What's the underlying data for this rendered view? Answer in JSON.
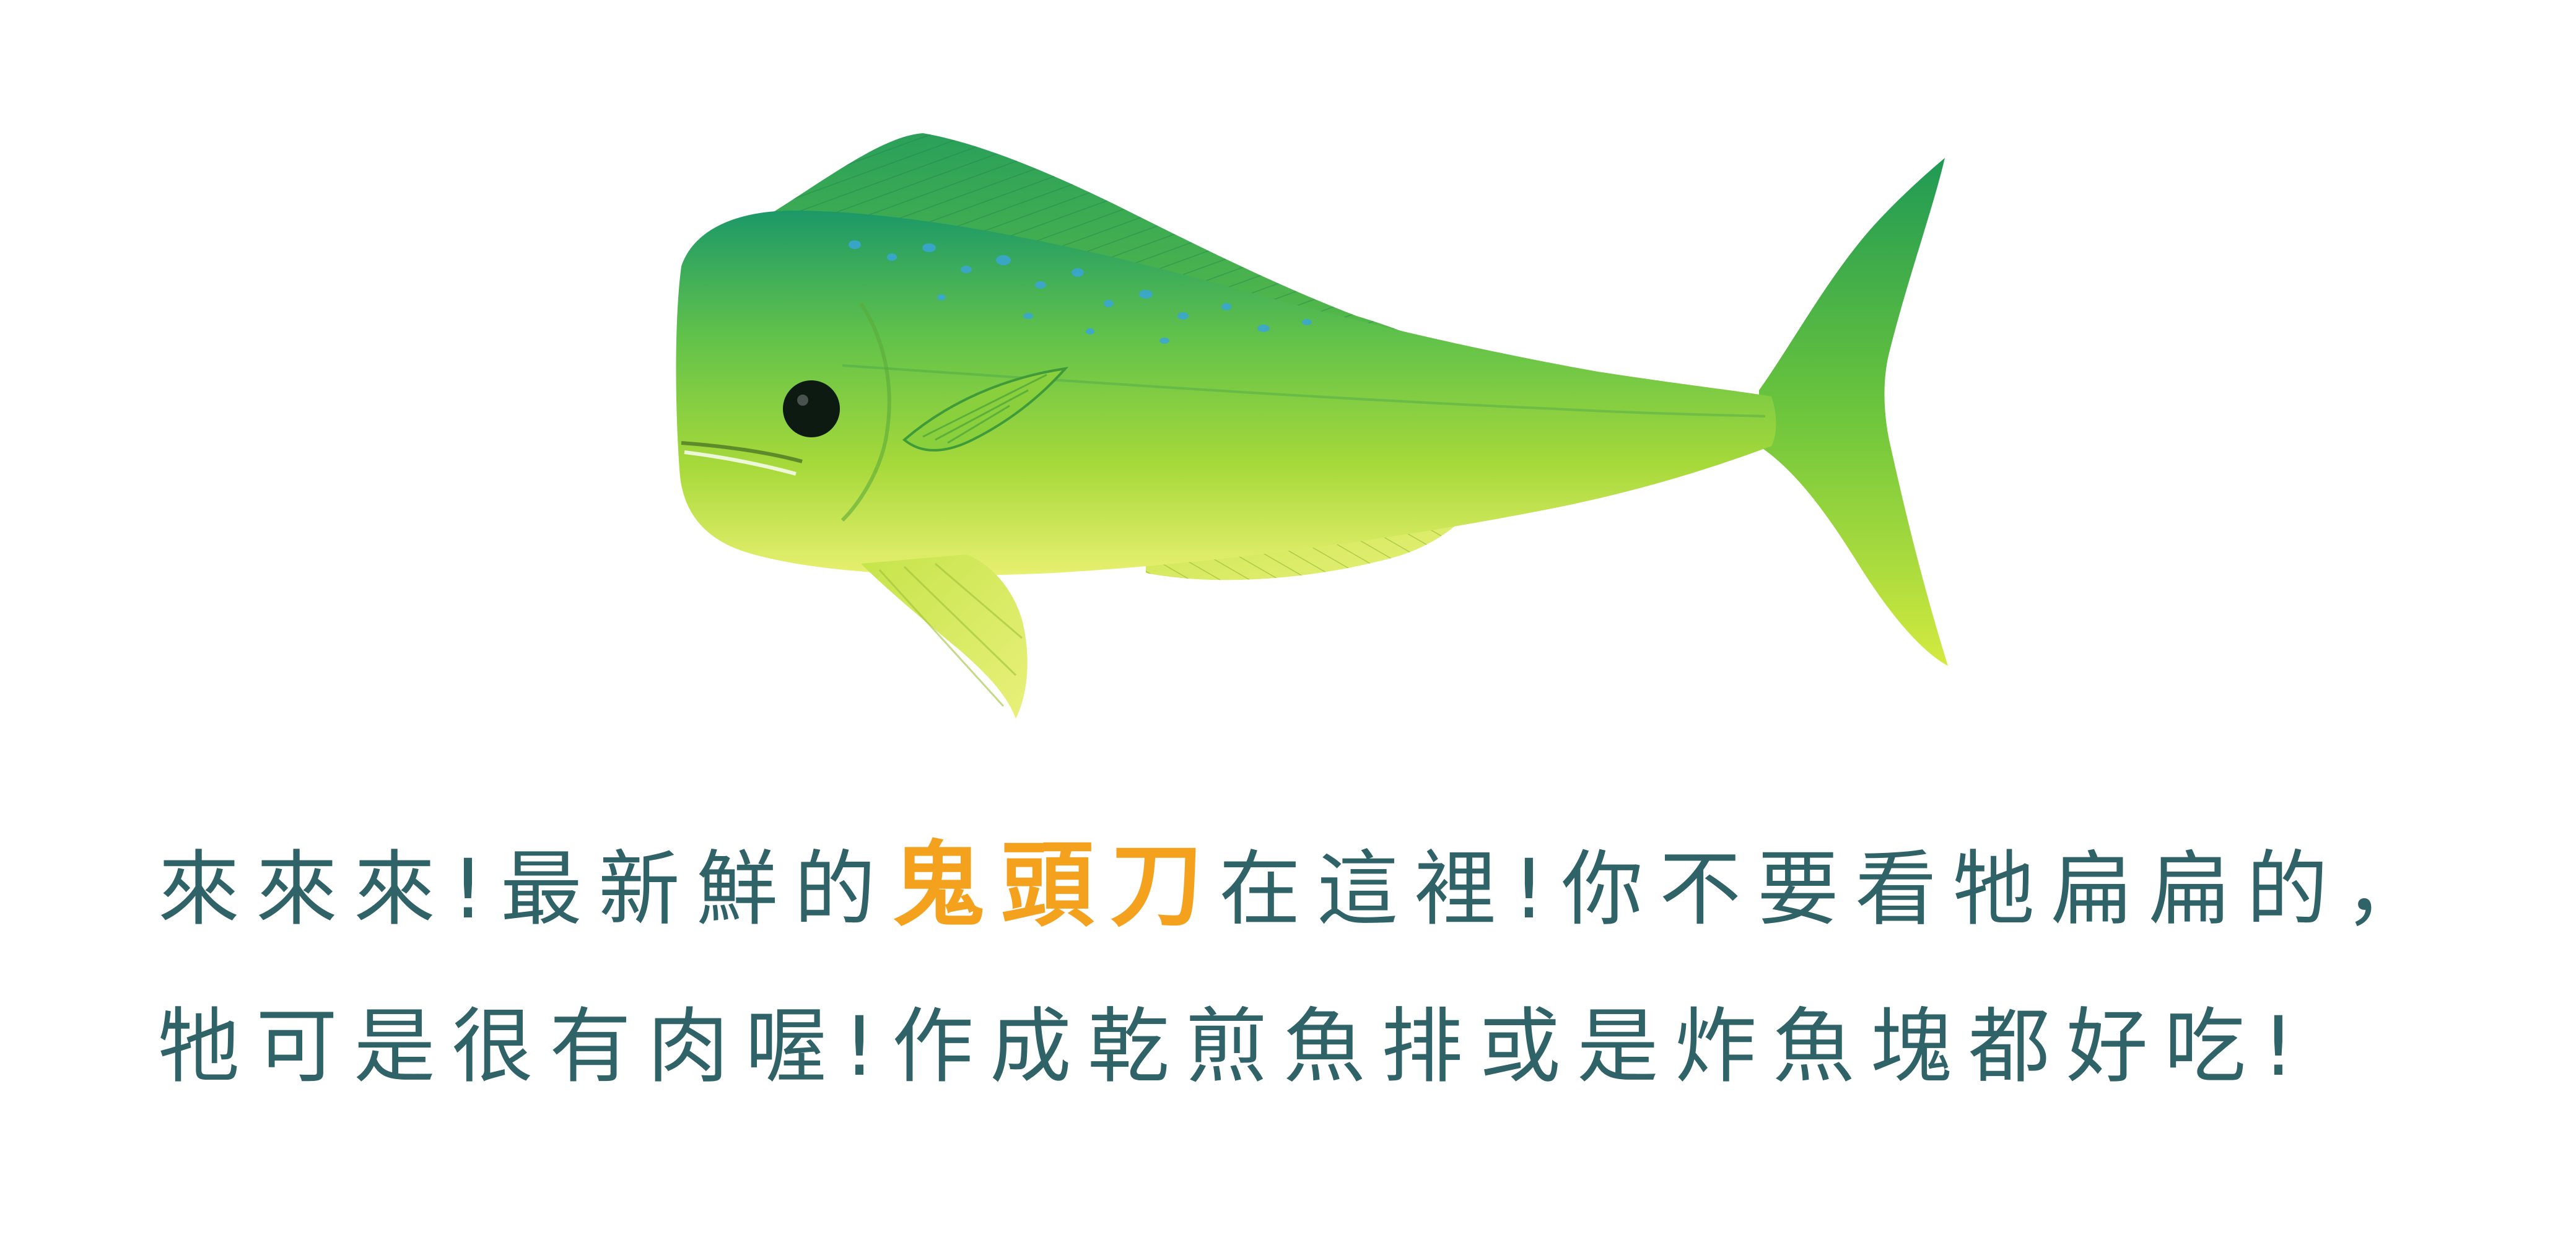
{
  "illustration": {
    "icon": "mahi-mahi-fish-icon",
    "colors": {
      "back": "#1f9a6a",
      "body": "#8fd13a",
      "belly": "#e6ef6a",
      "spots": "#3aa6d8",
      "eye": "#0d1a12"
    }
  },
  "caption": {
    "line1_before": "來來來!最新鮮的",
    "line1_highlight": "鬼頭刀",
    "line1_after": "在這裡!你不要看牠扁扁的，",
    "line2": "牠可是很有肉喔!作成乾煎魚排或是炸魚塊都好吃!",
    "text_color": "#2f6368",
    "highlight_color": "#f4a11e"
  }
}
